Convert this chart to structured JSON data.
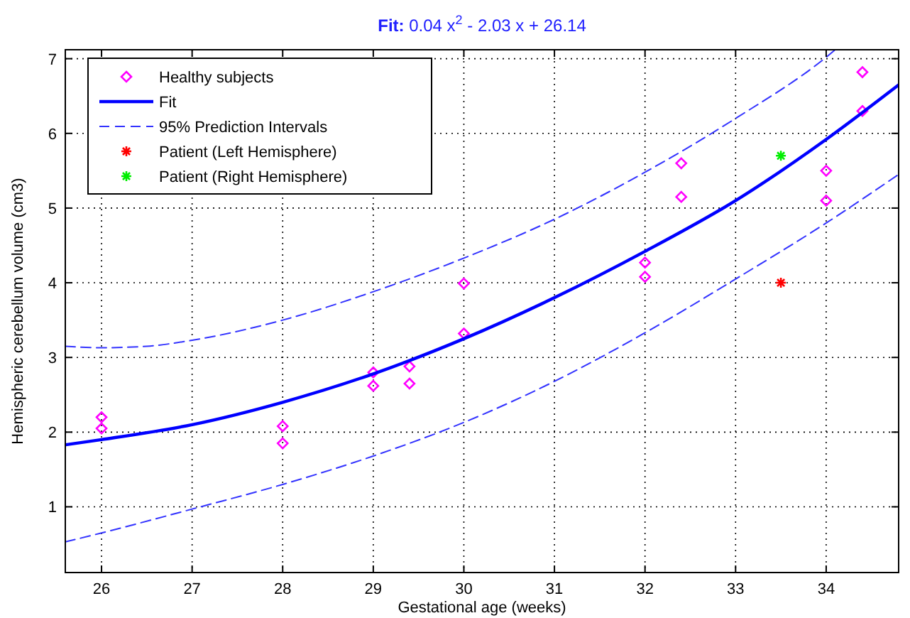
{
  "chart_data": {
    "type": "scatter",
    "title": "Fit:  0.04 x$^{2}$ - 2.03 x + 26.14",
    "xlabel": "Gestational age (weeks)",
    "ylabel": "Hemispheric cerebellum volume (cm3)",
    "xlim": [
      25.6,
      34.8
    ],
    "ylim": [
      0.12,
      7.12
    ],
    "xticks": [
      26,
      27,
      28,
      29,
      30,
      31,
      32,
      33,
      34
    ],
    "yticks": [
      1,
      2,
      3,
      4,
      5,
      6,
      7
    ],
    "grid": true,
    "legend": "top left",
    "series": [
      {
        "name": "Healthy subjects",
        "type": "scatter",
        "marker": "diamond",
        "color": "#ff00ff",
        "x": [
          26,
          26,
          28,
          28,
          29,
          29,
          29.4,
          29.4,
          30,
          30,
          32,
          32,
          32.4,
          32.4,
          34,
          34,
          34.4,
          34.4
        ],
        "values": [
          2.2,
          2.05,
          2.08,
          1.85,
          2.8,
          2.62,
          2.88,
          2.65,
          3.99,
          3.32,
          4.27,
          4.08,
          5.6,
          5.15,
          5.5,
          5.1,
          6.82,
          6.3
        ]
      },
      {
        "name": "Fit",
        "type": "line",
        "line_style": "solid",
        "color": "#0000ff",
        "x": [
          25.6,
          26,
          27,
          28,
          29,
          30,
          31,
          32,
          33,
          34,
          34.8
        ],
        "values": [
          1.83,
          1.9,
          2.1,
          2.4,
          2.78,
          3.25,
          3.8,
          4.42,
          5.1,
          5.92,
          6.65
        ]
      },
      {
        "name": "95% Prediction Intervals",
        "type": "line",
        "line_style": "dashed",
        "color": "#3333ff",
        "x": [
          25.6,
          26,
          26.5,
          27,
          28,
          29,
          30,
          31,
          32,
          33,
          34,
          34.1
        ],
        "values": [
          3.15,
          3.13,
          3.15,
          3.23,
          3.5,
          3.88,
          4.33,
          4.85,
          5.48,
          6.2,
          7.02,
          7.12
        ]
      },
      {
        "type": "line",
        "line_style": "dashed",
        "color": "#3333ff",
        "x": [
          25.6,
          26,
          27,
          28,
          29,
          30,
          31,
          32,
          33,
          34,
          34.8
        ],
        "values": [
          0.53,
          0.65,
          0.97,
          1.3,
          1.68,
          2.13,
          2.68,
          3.33,
          4.05,
          4.8,
          5.45
        ]
      },
      {
        "name": "Patient (Left Hemisphere)",
        "type": "scatter",
        "marker": "cross",
        "color": "#ff0000",
        "x": [
          33.5
        ],
        "values": [
          4.0
        ]
      },
      {
        "name": "Patient (Right Hemisphere)",
        "type": "scatter",
        "marker": "cross",
        "color": "#00ee00",
        "x": [
          33.5
        ],
        "values": [
          5.7
        ]
      }
    ]
  }
}
